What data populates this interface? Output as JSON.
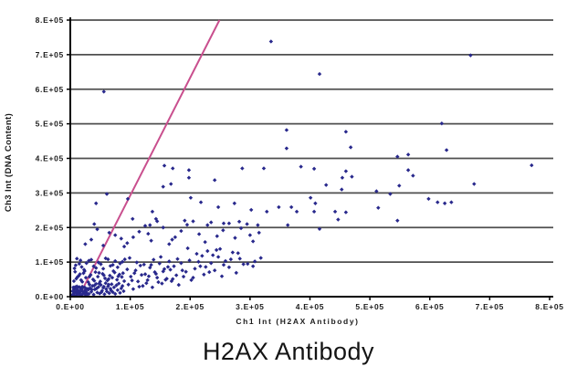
{
  "chart_data": {
    "type": "scatter",
    "title": "H2AX Antibody",
    "xlabel": "Ch1 Int (H2AX Antibody)",
    "ylabel": "Ch3 Int (DNA Content)",
    "xlim": [
      0,
      800000
    ],
    "ylim": [
      0,
      800000
    ],
    "x_tick_labels": [
      "0.E+00",
      "1.E+05",
      "2.E+05",
      "3.E+05",
      "4.E+05",
      "5.E+05",
      "6.E+05",
      "7.E+05",
      "8.E+05"
    ],
    "y_tick_labels": [
      "0.E+00",
      "1.E+05",
      "2.E+05",
      "3.E+05",
      "4.E+05",
      "5.E+05",
      "6.E+05",
      "7.E+05",
      "8.E+05"
    ],
    "grid": "horizontal-only",
    "legend_position": "none",
    "marker": "diamond",
    "point_color": "#28288c",
    "grid_color": "#4f4f4f",
    "axis_color": "#000000",
    "reference_line": {
      "x1": 20000,
      "y1": 20000,
      "x2": 249000,
      "y2": 800000,
      "color": "#c94f8e"
    },
    "points_unit": 1000,
    "points": [
      [
        3,
        4
      ],
      [
        5,
        8
      ],
      [
        7,
        3
      ],
      [
        9,
        12
      ],
      [
        11,
        6
      ],
      [
        13,
        18
      ],
      [
        15,
        9
      ],
      [
        17,
        25
      ],
      [
        19,
        5
      ],
      [
        21,
        14
      ],
      [
        23,
        8
      ],
      [
        25,
        19
      ],
      [
        27,
        11
      ],
      [
        29,
        23
      ],
      [
        4,
        16
      ],
      [
        6,
        22
      ],
      [
        8,
        28
      ],
      [
        10,
        17
      ],
      [
        12,
        26
      ],
      [
        14,
        7
      ],
      [
        16,
        13
      ],
      [
        18,
        21
      ],
      [
        20,
        29
      ],
      [
        22,
        10
      ],
      [
        24,
        27
      ],
      [
        26,
        15
      ],
      [
        28,
        6
      ],
      [
        30,
        20
      ],
      [
        5,
        27
      ],
      [
        7,
        15
      ],
      [
        9,
        24
      ],
      [
        11,
        30
      ],
      [
        13,
        12
      ],
      [
        15,
        28
      ],
      [
        17,
        6
      ],
      [
        19,
        18
      ],
      [
        21,
        26
      ],
      [
        23,
        13
      ],
      [
        25,
        7
      ],
      [
        27,
        22
      ],
      [
        31,
        8
      ],
      [
        33,
        25
      ],
      [
        35,
        14
      ],
      [
        37,
        31
      ],
      [
        39,
        6
      ],
      [
        41,
        21
      ],
      [
        43,
        37
      ],
      [
        45,
        12
      ],
      [
        47,
        28
      ],
      [
        49,
        9
      ],
      [
        51,
        34
      ],
      [
        53,
        17
      ],
      [
        55,
        26
      ],
      [
        57,
        7
      ],
      [
        59,
        39
      ],
      [
        61,
        15
      ],
      [
        63,
        30
      ],
      [
        65,
        10
      ],
      [
        67,
        23
      ],
      [
        69,
        36
      ],
      [
        71,
        13
      ],
      [
        73,
        27
      ],
      [
        75,
        8
      ],
      [
        77,
        33
      ],
      [
        79,
        19
      ],
      [
        81,
        38
      ],
      [
        83,
        11
      ],
      [
        85,
        24
      ],
      [
        87,
        31
      ],
      [
        89,
        16
      ],
      [
        32,
        35
      ],
      [
        36,
        20
      ],
      [
        40,
        32
      ],
      [
        44,
        24
      ],
      [
        48,
        38
      ],
      [
        52,
        13
      ],
      [
        56,
        29
      ],
      [
        60,
        22
      ],
      [
        64,
        35
      ],
      [
        68,
        18
      ],
      [
        6,
        45
      ],
      [
        10,
        52
      ],
      [
        14,
        60
      ],
      [
        18,
        48
      ],
      [
        22,
        68
      ],
      [
        26,
        55
      ],
      [
        30,
        42
      ],
      [
        34,
        63
      ],
      [
        38,
        50
      ],
      [
        42,
        71
      ],
      [
        46,
        58
      ],
      [
        50,
        44
      ],
      [
        54,
        66
      ],
      [
        58,
        53
      ],
      [
        62,
        47
      ],
      [
        66,
        61
      ],
      [
        70,
        55
      ],
      [
        74,
        70
      ],
      [
        78,
        49
      ],
      [
        82,
        64
      ],
      [
        86,
        57
      ],
      [
        90,
        45
      ],
      [
        8,
        72
      ],
      [
        16,
        65
      ],
      [
        24,
        74
      ],
      [
        32,
        58
      ],
      [
        40,
        46
      ],
      [
        48,
        69
      ],
      [
        56,
        62
      ],
      [
        64,
        51
      ],
      [
        72,
        74
      ],
      [
        80,
        59
      ],
      [
        88,
        68
      ],
      [
        12,
        57
      ],
      [
        20,
        43
      ],
      [
        7,
        82
      ],
      [
        15,
        95
      ],
      [
        23,
        78
      ],
      [
        31,
        104
      ],
      [
        39,
        88
      ],
      [
        47,
        99
      ],
      [
        55,
        81
      ],
      [
        63,
        108
      ],
      [
        71,
        92
      ],
      [
        79,
        85
      ],
      [
        87,
        101
      ],
      [
        95,
        79
      ],
      [
        11,
        110
      ],
      [
        19,
        86
      ],
      [
        27,
        97
      ],
      [
        35,
        107
      ],
      [
        43,
        83
      ],
      [
        51,
        94
      ],
      [
        59,
        111
      ],
      [
        67,
        89
      ],
      [
        75,
        103
      ],
      [
        83,
        96
      ],
      [
        91,
        108
      ],
      [
        9,
        91
      ],
      [
        17,
        105
      ],
      [
        97,
        35
      ],
      [
        101,
        58
      ],
      [
        105,
        22
      ],
      [
        109,
        76
      ],
      [
        113,
        44
      ],
      [
        117,
        90
      ],
      [
        121,
        31
      ],
      [
        125,
        65
      ],
      [
        129,
        48
      ],
      [
        133,
        84
      ],
      [
        137,
        27
      ],
      [
        141,
        71
      ],
      [
        145,
        55
      ],
      [
        149,
        96
      ],
      [
        153,
        38
      ],
      [
        157,
        80
      ],
      [
        161,
        52
      ],
      [
        165,
        102
      ],
      [
        169,
        45
      ],
      [
        173,
        88
      ],
      [
        177,
        62
      ],
      [
        181,
        34
      ],
      [
        185,
        97
      ],
      [
        189,
        58
      ],
      [
        99,
        112
      ],
      [
        107,
        68
      ],
      [
        115,
        29
      ],
      [
        123,
        93
      ],
      [
        131,
        59
      ],
      [
        139,
        107
      ],
      [
        147,
        42
      ],
      [
        155,
        73
      ],
      [
        163,
        86
      ],
      [
        171,
        51
      ],
      [
        179,
        109
      ],
      [
        187,
        76
      ],
      [
        103,
        47
      ],
      [
        111,
        99
      ],
      [
        119,
        63
      ],
      [
        127,
        39
      ],
      [
        135,
        92
      ],
      [
        143,
        66
      ],
      [
        151,
        115
      ],
      [
        159,
        49
      ],
      [
        167,
        78
      ],
      [
        193,
        72
      ],
      [
        199,
        105
      ],
      [
        205,
        55
      ],
      [
        211,
        124
      ],
      [
        217,
        88
      ],
      [
        223,
        64
      ],
      [
        229,
        132
      ],
      [
        235,
        97
      ],
      [
        241,
        76
      ],
      [
        247,
        115
      ],
      [
        253,
        59
      ],
      [
        259,
        103
      ],
      [
        265,
        85
      ],
      [
        271,
        128
      ],
      [
        277,
        69
      ],
      [
        283,
        110
      ],
      [
        289,
        94
      ],
      [
        196,
        140
      ],
      [
        208,
        81
      ],
      [
        220,
        118
      ],
      [
        232,
        71
      ],
      [
        244,
        135
      ],
      [
        256,
        92
      ],
      [
        268,
        108
      ],
      [
        280,
        126
      ],
      [
        202,
        48
      ],
      [
        214,
        101
      ],
      [
        226,
        86
      ],
      [
        238,
        120
      ],
      [
        250,
        138
      ],
      [
        296,
        95
      ],
      [
        308,
        102
      ],
      [
        318,
        112
      ],
      [
        305,
        88
      ],
      [
        35,
        165
      ],
      [
        55,
        148
      ],
      [
        75,
        178
      ],
      [
        95,
        155
      ],
      [
        115,
        188
      ],
      [
        135,
        162
      ],
      [
        155,
        200
      ],
      [
        175,
        172
      ],
      [
        195,
        208
      ],
      [
        215,
        181
      ],
      [
        235,
        215
      ],
      [
        255,
        192
      ],
      [
        275,
        170
      ],
      [
        295,
        210
      ],
      [
        315,
        185
      ],
      [
        45,
        195
      ],
      [
        85,
        168
      ],
      [
        125,
        205
      ],
      [
        165,
        152
      ],
      [
        205,
        218
      ],
      [
        245,
        175
      ],
      [
        285,
        198
      ],
      [
        305,
        160
      ],
      [
        25,
        152
      ],
      [
        65,
        185
      ],
      [
        105,
        172
      ],
      [
        145,
        218
      ],
      [
        185,
        190
      ],
      [
        225,
        158
      ],
      [
        265,
        212
      ],
      [
        300,
        178
      ],
      [
        40,
        210
      ],
      [
        90,
        145
      ],
      [
        130,
        182
      ],
      [
        170,
        165
      ],
      [
        61,
        297
      ],
      [
        43,
        270
      ],
      [
        96,
        283
      ],
      [
        137,
        246
      ],
      [
        104,
        225
      ],
      [
        133,
        207
      ],
      [
        201,
        286
      ],
      [
        218,
        273
      ],
      [
        247,
        259
      ],
      [
        274,
        270
      ],
      [
        302,
        251
      ],
      [
        328,
        246
      ],
      [
        348,
        259
      ],
      [
        369,
        259
      ],
      [
        378,
        246
      ],
      [
        157,
        379
      ],
      [
        171,
        371
      ],
      [
        198,
        366
      ],
      [
        198,
        344
      ],
      [
        168,
        326
      ],
      [
        241,
        337
      ],
      [
        155,
        318
      ],
      [
        323,
        371
      ],
      [
        287,
        371
      ],
      [
        385,
        376
      ],
      [
        191,
        220
      ],
      [
        256,
        212
      ],
      [
        282,
        217
      ],
      [
        313,
        207
      ],
      [
        363,
        207
      ],
      [
        229,
        207
      ],
      [
        143,
        225
      ],
      [
        407,
        370
      ],
      [
        460,
        363
      ],
      [
        454,
        344
      ],
      [
        470,
        347
      ],
      [
        427,
        323
      ],
      [
        453,
        310
      ],
      [
        564,
        366
      ],
      [
        572,
        350
      ],
      [
        549,
        321
      ],
      [
        674,
        326
      ],
      [
        770,
        380
      ],
      [
        401,
        286
      ],
      [
        409,
        270
      ],
      [
        407,
        246
      ],
      [
        442,
        246
      ],
      [
        460,
        244
      ],
      [
        447,
        223
      ],
      [
        511,
        305
      ],
      [
        534,
        297
      ],
      [
        514,
        257
      ],
      [
        598,
        283
      ],
      [
        613,
        273
      ],
      [
        625,
        270
      ],
      [
        636,
        273
      ],
      [
        546,
        220
      ],
      [
        416,
        196
      ],
      [
        56,
        593
      ],
      [
        335,
        738
      ],
      [
        416,
        644
      ],
      [
        668,
        698
      ],
      [
        620,
        501
      ],
      [
        361,
        482
      ],
      [
        460,
        477
      ],
      [
        361,
        429
      ],
      [
        468,
        432
      ],
      [
        546,
        405
      ],
      [
        564,
        411
      ],
      [
        628,
        424
      ]
    ]
  }
}
